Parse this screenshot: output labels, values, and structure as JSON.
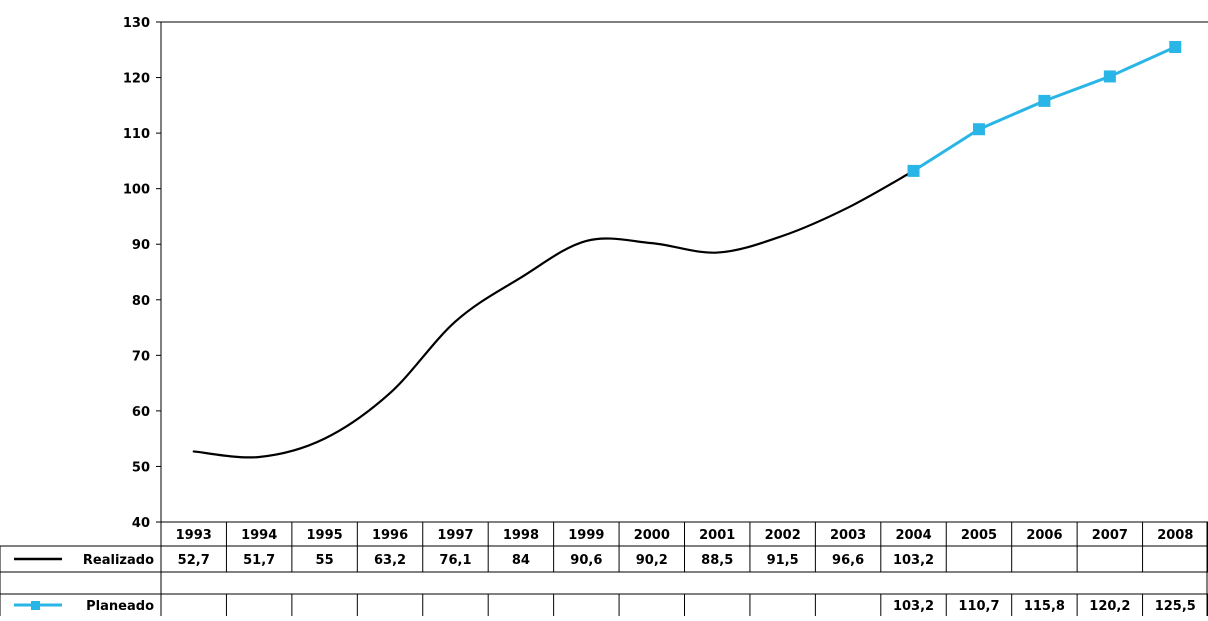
{
  "chart_data": {
    "type": "line",
    "title": "",
    "xlabel": "",
    "ylabel": "",
    "ylim": [
      40,
      130
    ],
    "yticks": [
      "130",
      "120",
      "110",
      "100",
      "90",
      "80",
      "70",
      "60",
      "50",
      "40"
    ],
    "categories": [
      "1993",
      "1994",
      "1995",
      "1996",
      "1997",
      "1998",
      "1999",
      "2000",
      "2001",
      "2002",
      "2003",
      "2004",
      "2005",
      "2006",
      "2007",
      "2008"
    ],
    "grid": false,
    "legend": "bottom-left data table",
    "series": [
      {
        "name": "Realizado",
        "color": "#000000",
        "marker": "none",
        "smooth": true,
        "values": [
          52.7,
          51.7,
          55,
          63.2,
          76.1,
          84,
          90.6,
          90.2,
          88.5,
          91.5,
          96.6,
          103.2,
          null,
          null,
          null,
          null
        ],
        "labels": [
          "52,7",
          "51,7",
          "55",
          "63,2",
          "76,1",
          "84",
          "90,6",
          "90,2",
          "88,5",
          "91,5",
          "96,6",
          "103,2",
          "",
          "",
          "",
          ""
        ]
      },
      {
        "name": "Planeado",
        "color": "#29b6e6",
        "marker": "square",
        "smooth": false,
        "values": [
          null,
          null,
          null,
          null,
          null,
          null,
          null,
          null,
          null,
          null,
          null,
          103.2,
          110.7,
          115.8,
          120.2,
          125.5
        ],
        "labels": [
          "",
          "",
          "",
          "",
          "",
          "",
          "",
          "",
          "",
          "",
          "",
          "103,2",
          "110,7",
          "115,8",
          "120,2",
          "125,5"
        ]
      }
    ]
  }
}
